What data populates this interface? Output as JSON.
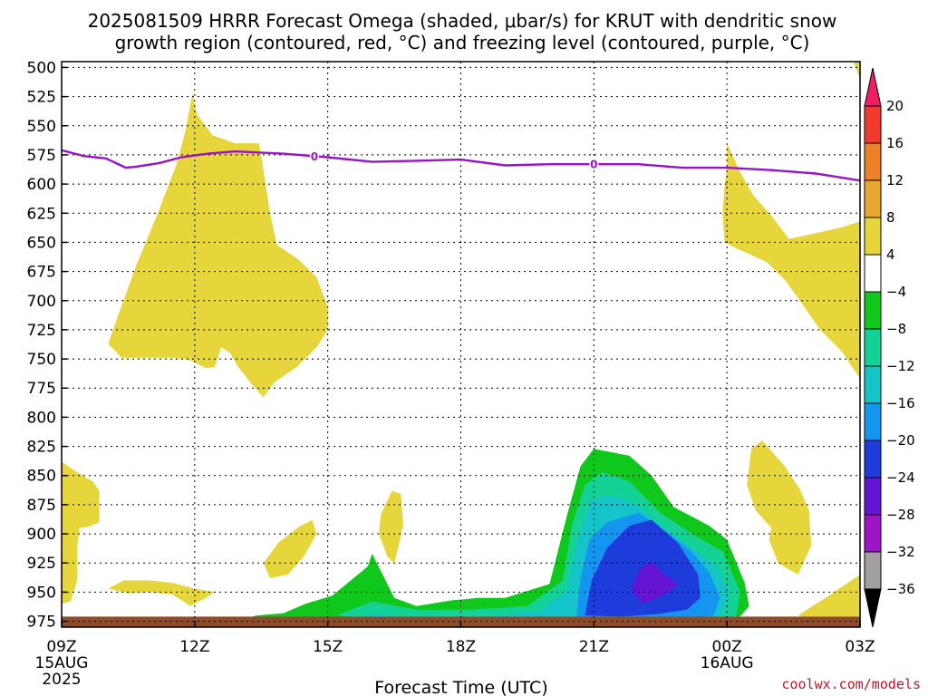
{
  "chart_data": {
    "type": "heatmap",
    "title_line1": "2025081509 HRRR Forecast Omega (shaded, μbar/s) for KRUT with dendritic snow",
    "title_line2": "growth region (contoured, red, °C) and freezing level (contoured, purple, °C)",
    "xlabel": "Forecast Time (UTC)",
    "ylabel": "",
    "y_axis": {
      "units": "mb",
      "ticks": [
        500,
        525,
        550,
        575,
        600,
        625,
        650,
        675,
        700,
        725,
        750,
        775,
        800,
        825,
        850,
        875,
        900,
        925,
        950,
        975
      ],
      "range": [
        495,
        980
      ]
    },
    "x_axis": {
      "units": "hours since 2025-08-15 09Z",
      "range": [
        0,
        18
      ],
      "ticks": [
        {
          "x": 0,
          "label": "09Z",
          "sub1": "15AUG",
          "sub2": "2025"
        },
        {
          "x": 3,
          "label": "12Z",
          "sub1": "",
          "sub2": ""
        },
        {
          "x": 6,
          "label": "15Z",
          "sub1": "",
          "sub2": ""
        },
        {
          "x": 9,
          "label": "18Z",
          "sub1": "",
          "sub2": ""
        },
        {
          "x": 12,
          "label": "21Z",
          "sub1": "",
          "sub2": ""
        },
        {
          "x": 15,
          "label": "00Z",
          "sub1": "16AUG",
          "sub2": ""
        },
        {
          "x": 18,
          "label": "03Z",
          "sub1": "",
          "sub2": ""
        }
      ]
    },
    "colorbar": {
      "levels": [
        20,
        16,
        12,
        8,
        4,
        -4,
        -8,
        -12,
        -16,
        -20,
        -24,
        -28,
        -32,
        -36
      ],
      "colors": [
        "#f01e64",
        "#f03a2e",
        "#ee8028",
        "#e8a830",
        "#e6d63c",
        "#ffffff",
        "#10c81c",
        "#14d296",
        "#14c4c8",
        "#1496f0",
        "#1e3cdc",
        "#6414d2",
        "#a014c8",
        "#a0a0a0",
        "#000000"
      ]
    },
    "omega_regions": [
      {
        "level": "4 to 8",
        "color": "#e6d63c",
        "pts": [
          [
            1.05,
            737
          ],
          [
            1.3,
            710
          ],
          [
            1.7,
            668
          ],
          [
            2.2,
            622
          ],
          [
            2.6,
            582
          ],
          [
            2.8,
            553
          ],
          [
            2.95,
            522
          ],
          [
            3.05,
            540
          ],
          [
            3.4,
            558
          ],
          [
            3.9,
            565
          ],
          [
            4.45,
            565
          ],
          [
            4.6,
            600
          ],
          [
            4.7,
            625
          ],
          [
            4.85,
            652
          ],
          [
            5.35,
            665
          ],
          [
            5.75,
            680
          ],
          [
            6.0,
            705
          ],
          [
            6.0,
            725
          ],
          [
            5.75,
            740
          ],
          [
            5.3,
            757
          ],
          [
            4.8,
            770
          ],
          [
            4.55,
            783
          ],
          [
            4.25,
            770
          ],
          [
            3.95,
            755
          ],
          [
            3.8,
            745
          ],
          [
            3.6,
            740
          ],
          [
            3.45,
            757
          ],
          [
            3.25,
            758
          ],
          [
            2.9,
            751
          ],
          [
            2.55,
            749
          ],
          [
            2.1,
            749
          ],
          [
            1.65,
            749
          ],
          [
            1.35,
            749
          ]
        ]
      },
      {
        "level": "4 to 8",
        "color": "#e6d63c",
        "pts": [
          [
            15.0,
            565
          ],
          [
            15.3,
            590
          ],
          [
            15.6,
            610
          ],
          [
            16.0,
            627
          ],
          [
            16.4,
            647
          ],
          [
            16.9,
            643
          ],
          [
            17.6,
            637
          ],
          [
            18.0,
            632
          ],
          [
            18.0,
            767
          ],
          [
            17.6,
            744
          ],
          [
            17.1,
            725
          ],
          [
            16.7,
            703
          ],
          [
            16.3,
            682
          ],
          [
            15.9,
            667
          ],
          [
            15.5,
            660
          ],
          [
            15.2,
            655
          ],
          [
            14.95,
            650
          ],
          [
            14.9,
            625
          ],
          [
            14.95,
            600
          ],
          [
            15.0,
            585
          ]
        ]
      },
      {
        "level": "4 to 8",
        "color": "#e6d63c",
        "pts": [
          [
            17.8,
            485
          ],
          [
            18.0,
            485
          ],
          [
            18.0,
            510
          ],
          [
            17.8,
            490
          ]
        ]
      },
      {
        "level": "4 to 8",
        "color": "#e6d63c",
        "pts": [
          [
            0,
            838
          ],
          [
            0.3,
            846
          ],
          [
            0.7,
            855
          ],
          [
            0.85,
            863
          ],
          [
            0.85,
            890
          ],
          [
            0.6,
            894
          ],
          [
            0.4,
            895
          ],
          [
            0.35,
            912
          ],
          [
            0.35,
            940
          ],
          [
            0.2,
            958
          ],
          [
            0.0,
            960
          ]
        ]
      },
      {
        "level": "4 to 8",
        "color": "#e6d63c",
        "pts": [
          [
            1.05,
            947
          ],
          [
            1.4,
            940
          ],
          [
            2.0,
            940
          ],
          [
            2.5,
            942
          ],
          [
            3.0,
            947
          ],
          [
            3.45,
            950
          ],
          [
            3.25,
            955
          ],
          [
            2.9,
            962
          ],
          [
            2.5,
            952
          ],
          [
            2.0,
            950
          ],
          [
            1.5,
            951
          ]
        ]
      },
      {
        "level": "4 to 8",
        "color": "#e6d63c",
        "pts": [
          [
            4.55,
            925
          ],
          [
            4.9,
            907
          ],
          [
            5.35,
            894
          ],
          [
            5.65,
            888
          ],
          [
            5.75,
            900
          ],
          [
            5.45,
            920
          ],
          [
            5.1,
            935
          ],
          [
            4.7,
            938
          ]
        ]
      },
      {
        "level": "4 to 8",
        "color": "#e6d63c",
        "pts": [
          [
            7.2,
            883
          ],
          [
            7.45,
            863
          ],
          [
            7.65,
            866
          ],
          [
            7.7,
            892
          ],
          [
            7.6,
            910
          ],
          [
            7.5,
            925
          ],
          [
            7.35,
            920
          ],
          [
            7.15,
            900
          ]
        ]
      },
      {
        "level": "4 to 8",
        "color": "#e6d63c",
        "pts": [
          [
            15.55,
            827
          ],
          [
            15.8,
            820
          ],
          [
            16.3,
            842
          ],
          [
            16.65,
            862
          ],
          [
            16.85,
            880
          ],
          [
            16.9,
            910
          ],
          [
            16.6,
            935
          ],
          [
            16.15,
            925
          ],
          [
            15.95,
            905
          ],
          [
            16.0,
            895
          ],
          [
            15.65,
            880
          ],
          [
            15.45,
            858
          ]
        ]
      },
      {
        "level": "4 to 8",
        "color": "#e6d63c",
        "pts": [
          [
            16.6,
            970
          ],
          [
            17.3,
            953
          ],
          [
            17.8,
            940
          ],
          [
            18.0,
            935
          ],
          [
            18.0,
            976
          ],
          [
            17.2,
            976
          ]
        ]
      },
      {
        "level": "-4 to -8",
        "color": "#10c81c",
        "pts": [
          [
            3.9,
            975
          ],
          [
            4.4,
            970
          ],
          [
            5.0,
            968
          ],
          [
            5.5,
            960
          ],
          [
            6.1,
            953
          ],
          [
            6.9,
            928
          ],
          [
            7.0,
            917
          ],
          [
            7.5,
            955
          ],
          [
            8.0,
            962
          ],
          [
            8.8,
            957
          ],
          [
            9.4,
            955
          ],
          [
            10.0,
            955
          ],
          [
            11.0,
            943
          ],
          [
            11.4,
            883
          ],
          [
            11.7,
            842
          ],
          [
            12.0,
            827
          ],
          [
            12.8,
            833
          ],
          [
            13.3,
            850
          ],
          [
            13.8,
            877
          ],
          [
            14.6,
            893
          ],
          [
            15.0,
            905
          ],
          [
            15.4,
            942
          ],
          [
            15.5,
            962
          ],
          [
            15.2,
            975
          ],
          [
            14.5,
            977
          ],
          [
            11.5,
            977
          ],
          [
            8.0,
            978
          ]
        ]
      },
      {
        "level": "-8 to -12",
        "color": "#14d296",
        "pts": [
          [
            6.2,
            970
          ],
          [
            7.0,
            958
          ],
          [
            8.0,
            965
          ],
          [
            9.2,
            965
          ],
          [
            10.5,
            962
          ],
          [
            11.3,
            940
          ],
          [
            11.5,
            893
          ],
          [
            11.8,
            858
          ],
          [
            12.2,
            847
          ],
          [
            12.8,
            855
          ],
          [
            13.5,
            882
          ],
          [
            14.3,
            902
          ],
          [
            14.9,
            915
          ],
          [
            15.3,
            950
          ],
          [
            15.2,
            972
          ],
          [
            14.0,
            977
          ],
          [
            11.6,
            977
          ],
          [
            8.5,
            977
          ]
        ]
      },
      {
        "level": "-12 to -16",
        "color": "#14c4c8",
        "pts": [
          [
            6.7,
            977
          ],
          [
            7.0,
            968
          ],
          [
            8.0,
            972
          ],
          [
            9.3,
            972
          ],
          [
            10.8,
            966
          ],
          [
            11.4,
            948
          ],
          [
            11.6,
            910
          ],
          [
            11.9,
            872
          ],
          [
            12.3,
            867
          ],
          [
            12.9,
            873
          ],
          [
            13.5,
            892
          ],
          [
            14.2,
            912
          ],
          [
            14.7,
            925
          ],
          [
            15.05,
            950
          ],
          [
            14.9,
            970
          ],
          [
            13.8,
            976
          ],
          [
            11.5,
            977
          ]
        ]
      },
      {
        "level": "-16 to -20",
        "color": "#1496f0",
        "pts": [
          [
            11.6,
            973
          ],
          [
            11.7,
            938
          ],
          [
            11.9,
            905
          ],
          [
            12.3,
            890
          ],
          [
            13.0,
            882
          ],
          [
            13.6,
            897
          ],
          [
            14.2,
            915
          ],
          [
            14.6,
            933
          ],
          [
            14.85,
            955
          ],
          [
            14.7,
            970
          ],
          [
            13.8,
            974
          ],
          [
            12.5,
            975
          ]
        ]
      },
      {
        "level": "-20 to -24",
        "color": "#1e3cdc",
        "pts": [
          [
            11.8,
            970
          ],
          [
            11.95,
            940
          ],
          [
            12.3,
            912
          ],
          [
            12.8,
            893
          ],
          [
            13.3,
            888
          ],
          [
            13.9,
            908
          ],
          [
            14.35,
            935
          ],
          [
            14.4,
            955
          ],
          [
            14.1,
            965
          ],
          [
            13.4,
            969
          ],
          [
            12.6,
            971
          ]
        ]
      },
      {
        "level": "-24 to -28",
        "color": "#6414d2",
        "pts": [
          [
            12.85,
            948
          ],
          [
            13.05,
            930
          ],
          [
            13.3,
            924
          ],
          [
            13.6,
            935
          ],
          [
            13.9,
            943
          ],
          [
            13.6,
            952
          ],
          [
            13.1,
            960
          ]
        ]
      }
    ],
    "surface_band": {
      "from": 971,
      "to": 980,
      "color": "#8a4c2a"
    },
    "freezing_level": {
      "label": "0",
      "label_x": [
        5.7,
        12.0
      ],
      "x": [
        0,
        0.5,
        1.0,
        1.45,
        1.7,
        2.2,
        2.7,
        3.3,
        3.9,
        4.5,
        5.0,
        6.0,
        7.0,
        8.0,
        9.0,
        10.0,
        11.0,
        12.0,
        13.0,
        14.0,
        15.0,
        16.0,
        17.0,
        18.0
      ],
      "y": [
        571,
        576,
        578,
        586,
        585,
        582,
        577,
        574,
        572,
        573,
        574,
        577,
        581,
        580,
        579,
        584,
        583,
        583,
        583,
        586,
        586,
        588,
        591,
        597
      ]
    }
  },
  "credit": "coolwx.com/models"
}
